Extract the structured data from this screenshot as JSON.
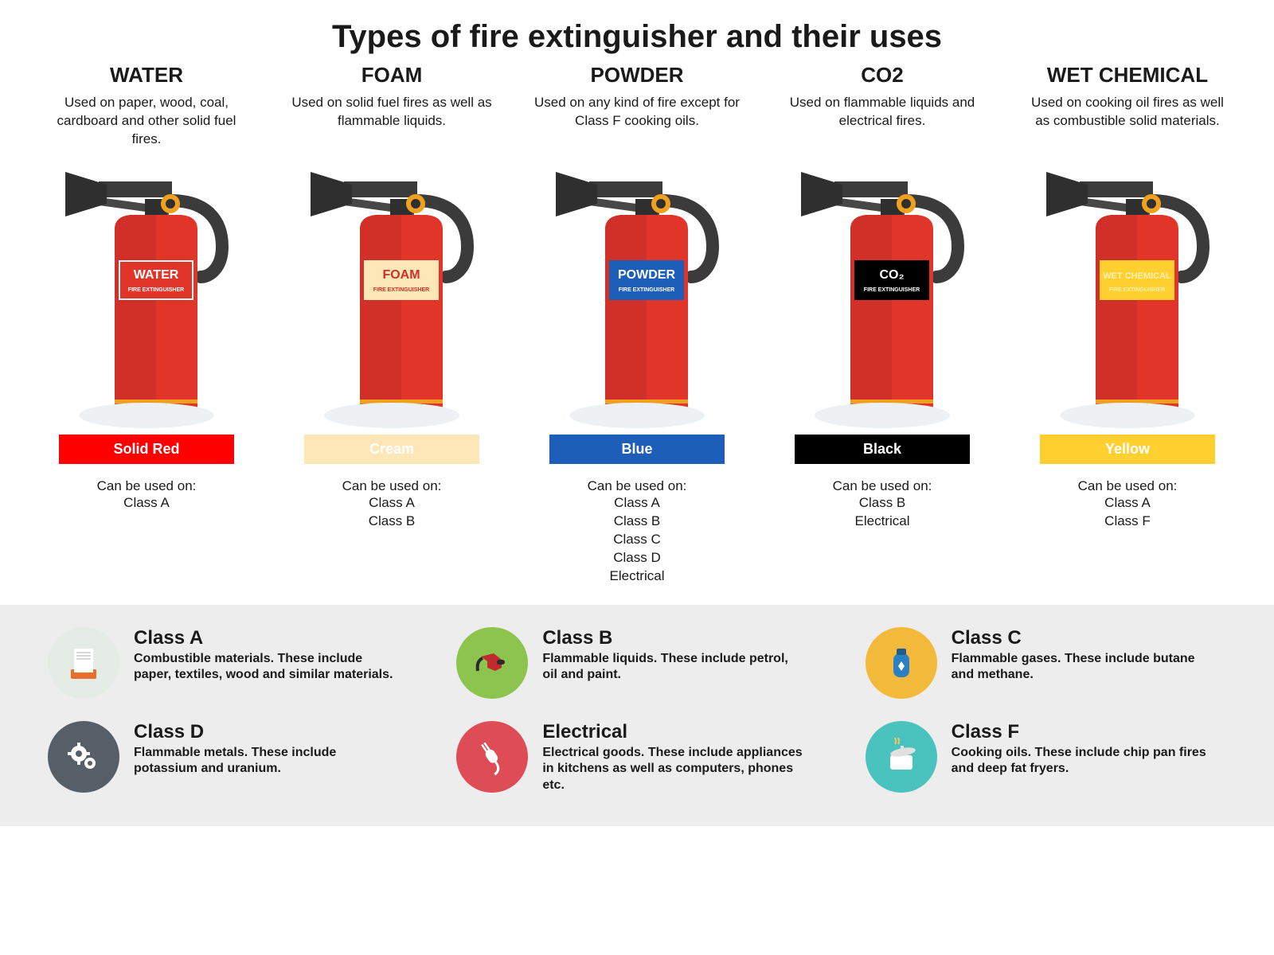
{
  "title": "Types of  fire extinguisher and their uses",
  "usage_label": "Can be used on:",
  "ext_sublabel": "FIRE EXTINGUISHER",
  "extinguisher_colors": {
    "body_left": "#d03027",
    "body_right": "#e1352a",
    "gold": "#f0a01f",
    "dark1": "#2f2f2f",
    "dark2": "#3b3b3b",
    "dark3": "#474747",
    "shadow": "#eef1f4"
  },
  "types": [
    {
      "name": "WATER",
      "desc": "Used on paper, wood, coal, cardboard and other solid fuel fires.",
      "label_text": "WATER",
      "label_bg": "#e1352a",
      "label_text_color": "#ffffff",
      "label_border": "#ffffff",
      "bar_text": "Solid Red",
      "bar_bg": "#ff0000",
      "bar_text_color": "#ffffff",
      "classes": [
        "Class A"
      ]
    },
    {
      "name": "FOAM",
      "desc": "Used on solid fuel fires as well as flammable liquids.",
      "label_text": "FOAM",
      "label_bg": "#fde7b9",
      "label_text_color": "#d03027",
      "label_border": "#fde7b9",
      "bar_text": "Cream",
      "bar_bg": "#fde7b9",
      "bar_text_color": "#ffffff",
      "classes": [
        "Class A",
        "Class B"
      ]
    },
    {
      "name": "POWDER",
      "desc": "Used on any kind of fire except for Class F cooking oils.",
      "label_text": "POWDER",
      "label_bg": "#1d5fb8",
      "label_text_color": "#ffffff",
      "label_border": "#1d5fb8",
      "bar_text": "Blue",
      "bar_bg": "#1d5fb8",
      "bar_text_color": "#ffffff",
      "classes": [
        "Class A",
        "Class B",
        "Class C",
        "Class D",
        "Electrical"
      ]
    },
    {
      "name": "CO2",
      "desc": "Used on flammable liquids and electrical fires.",
      "label_text": "CO₂",
      "label_bg": "#000000",
      "label_text_color": "#ffffff",
      "label_border": "#000000",
      "bar_text": "Black",
      "bar_bg": "#000000",
      "bar_text_color": "#ffffff",
      "classes": [
        "Class B",
        "Electrical"
      ]
    },
    {
      "name": "WET CHEMICAL",
      "desc": "Used on cooking oil fires as well as combustible solid materials.",
      "label_text": "WET CHEMICAL",
      "label_bg": "#ffd030",
      "label_text_color": "#fff0b0",
      "label_border": "#ffd030",
      "bar_text": "Yellow",
      "bar_bg": "#ffd030",
      "bar_text_color": "#ffffff",
      "classes": [
        "Class A",
        "Class F"
      ]
    }
  ],
  "fire_classes": [
    {
      "name": "Class A",
      "desc": "Combustible materials. These include paper, textiles, wood and similar materials.",
      "icon_bg": "#e4ece5",
      "icon": "paper"
    },
    {
      "name": "Class B",
      "desc": "Flammable liquids. These include petrol, oil and paint.",
      "icon_bg": "#8cc44d",
      "icon": "fuel"
    },
    {
      "name": "Class C",
      "desc": "Flammable gases. These include butane and methane.",
      "icon_bg": "#f2b93b",
      "icon": "gas"
    },
    {
      "name": "Class D",
      "desc": "Flammable metals. These include potassium and uranium.",
      "icon_bg": "#565f67",
      "icon": "gears"
    },
    {
      "name": "Electrical",
      "desc": "Electrical goods. These include appliances in kitchens as well as computers, phones etc.",
      "icon_bg": "#de4c56",
      "icon": "plug"
    },
    {
      "name": "Class F",
      "desc": "Cooking oils. These include chip pan fires and deep fat fryers.",
      "icon_bg": "#4ac3be",
      "icon": "pot"
    }
  ]
}
